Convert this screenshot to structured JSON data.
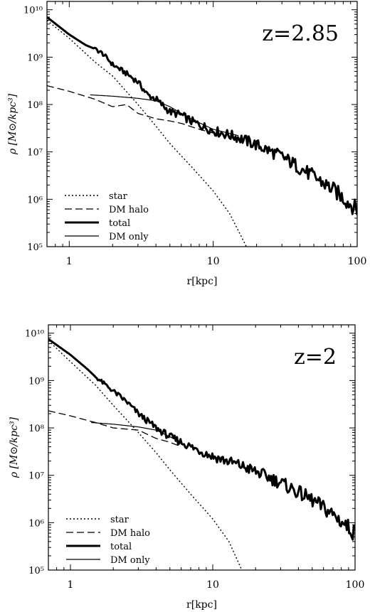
{
  "chart_data": [
    {
      "type": "line",
      "annotation": "z=2.85",
      "xlabel": "r[kpc]",
      "ylabel": "ρ [M⊙/kpc³]",
      "xscale": "log",
      "yscale": "log",
      "xlim": [
        0.7,
        100
      ],
      "ylim": [
        100000,
        15000000000
      ],
      "xticks": [
        {
          "value": 1,
          "label": "1"
        },
        {
          "value": 10,
          "label": "10"
        },
        {
          "value": 100,
          "label": "100"
        }
      ],
      "yticks": [
        {
          "value": 100000,
          "label": "10⁵"
        },
        {
          "value": 1000000,
          "label": "10⁶"
        },
        {
          "value": 10000000,
          "label": "10⁷"
        },
        {
          "value": 100000000,
          "label": "10⁸"
        },
        {
          "value": 1000000000,
          "label": "10⁹"
        },
        {
          "value": 10000000000,
          "label": "10¹⁰"
        }
      ],
      "legend_position": "bottom-left",
      "series": [
        {
          "name": "star",
          "style": "dotted",
          "points": [
            [
              0.7,
              6000000000.0
            ],
            [
              1.0,
              2500000000.0
            ],
            [
              1.5,
              800000000.0
            ],
            [
              2.0,
              400000000.0
            ],
            [
              3.0,
              100000000.0
            ],
            [
              4.0,
              35000000.0
            ],
            [
              5.0,
              15000000.0
            ],
            [
              7.0,
              5000000.0
            ],
            [
              10.0,
              1500000.0
            ],
            [
              13.0,
              500000.0
            ],
            [
              17.0,
              100000.0
            ]
          ]
        },
        {
          "name": "DM halo",
          "style": "dashed",
          "points": [
            [
              0.7,
              250000000.0
            ],
            [
              1.0,
              190000000.0
            ],
            [
              1.5,
              130000000.0
            ],
            [
              2.0,
              90000000.0
            ],
            [
              2.5,
              100000000.0
            ],
            [
              3.0,
              65000000.0
            ],
            [
              4.0,
              50000000.0
            ],
            [
              5.0,
              45000000.0
            ],
            [
              6.0,
              40000000.0
            ],
            [
              8.0,
              30000000.0
            ],
            [
              10.0,
              25000000.0
            ]
          ]
        },
        {
          "name": "total",
          "style": "thick",
          "points": [
            [
              0.7,
              7000000000.0
            ],
            [
              1.0,
              3000000000.0
            ],
            [
              1.3,
              1800000000.0
            ],
            [
              1.5,
              1500000000.0
            ],
            [
              1.7,
              1200000000.0
            ],
            [
              2.0,
              700000000.0
            ],
            [
              2.5,
              450000000.0
            ],
            [
              3.0,
              300000000.0
            ],
            [
              3.5,
              160000000.0
            ],
            [
              4.0,
              130000000.0
            ],
            [
              5.0,
              70000000.0
            ],
            [
              6.0,
              60000000.0
            ],
            [
              7.0,
              45000000.0
            ],
            [
              10.0,
              28000000.0
            ],
            [
              15.0,
              20000000.0
            ],
            [
              20.0,
              14000000.0
            ],
            [
              30.0,
              8000000.0
            ],
            [
              50.0,
              3000000.0
            ],
            [
              70.0,
              1500000.0
            ],
            [
              100.0,
              600000.0
            ]
          ]
        },
        {
          "name": "DM only",
          "style": "thin",
          "points": [
            [
              1.4,
              160000000.0
            ],
            [
              2.0,
              150000000.0
            ],
            [
              3.0,
              135000000.0
            ],
            [
              4.0,
              120000000.0
            ],
            [
              5.0,
              90000000.0
            ],
            [
              7.0,
              50000000.0
            ],
            [
              10.0,
              30000000.0
            ],
            [
              15.0,
              22000000.0
            ]
          ]
        }
      ]
    },
    {
      "type": "line",
      "annotation": "z=2",
      "xlabel": "r[kpc]",
      "ylabel": "ρ [M⊙/kpc³]",
      "xscale": "log",
      "yscale": "log",
      "xlim": [
        0.7,
        100
      ],
      "ylim": [
        100000,
        15000000000
      ],
      "xticks": [
        {
          "value": 1,
          "label": "1"
        },
        {
          "value": 10,
          "label": "10"
        },
        {
          "value": 100,
          "label": "100"
        }
      ],
      "yticks": [
        {
          "value": 100000,
          "label": "10⁵"
        },
        {
          "value": 1000000,
          "label": "10⁶"
        },
        {
          "value": 10000000,
          "label": "10⁷"
        },
        {
          "value": 100000000,
          "label": "10⁸"
        },
        {
          "value": 1000000000,
          "label": "10⁹"
        },
        {
          "value": 10000000000,
          "label": "10¹⁰"
        }
      ],
      "legend_position": "bottom-left",
      "series": [
        {
          "name": "star",
          "style": "dotted",
          "points": [
            [
              0.7,
              7000000000.0
            ],
            [
              1.0,
              2500000000.0
            ],
            [
              1.5,
              800000000.0
            ],
            [
              2.0,
              300000000.0
            ],
            [
              3.0,
              80000000.0
            ],
            [
              4.0,
              30000000.0
            ],
            [
              5.0,
              13000000.0
            ],
            [
              7.0,
              4000000.0
            ],
            [
              10.0,
              1200000.0
            ],
            [
              13.0,
              400000.0
            ],
            [
              16.0,
              100000.0
            ]
          ]
        },
        {
          "name": "DM halo",
          "style": "dashed",
          "points": [
            [
              0.7,
              230000000.0
            ],
            [
              1.0,
              180000000.0
            ],
            [
              1.5,
              130000000.0
            ],
            [
              2.0,
              100000000.0
            ],
            [
              3.0,
              90000000.0
            ],
            [
              4.0,
              60000000.0
            ],
            [
              5.0,
              50000000.0
            ],
            [
              6.0,
              40000000.0
            ]
          ]
        },
        {
          "name": "total",
          "style": "thick",
          "points": [
            [
              0.7,
              7500000000.0
            ],
            [
              1.0,
              3500000000.0
            ],
            [
              1.3,
              1800000000.0
            ],
            [
              1.5,
              1200000000.0
            ],
            [
              2.0,
              600000000.0
            ],
            [
              2.5,
              350000000.0
            ],
            [
              3.0,
              200000000.0
            ],
            [
              4.0,
              100000000.0
            ],
            [
              5.0,
              65000000.0
            ],
            [
              7.0,
              40000000.0
            ],
            [
              10.0,
              25000000.0
            ],
            [
              15.0,
              17000000.0
            ],
            [
              20.0,
              12000000.0
            ],
            [
              30.0,
              7000000.0
            ],
            [
              50.0,
              3000000.0
            ],
            [
              70.0,
              1500000.0
            ],
            [
              100.0,
              600000.0
            ]
          ]
        },
        {
          "name": "DM only",
          "style": "thin",
          "points": [
            [
              1.4,
              130000000.0
            ],
            [
              2.0,
              120000000.0
            ],
            [
              3.0,
              105000000.0
            ],
            [
              4.0,
              90000000.0
            ],
            [
              5.0,
              65000000.0
            ],
            [
              6.0,
              50000000.0
            ]
          ]
        }
      ]
    }
  ]
}
